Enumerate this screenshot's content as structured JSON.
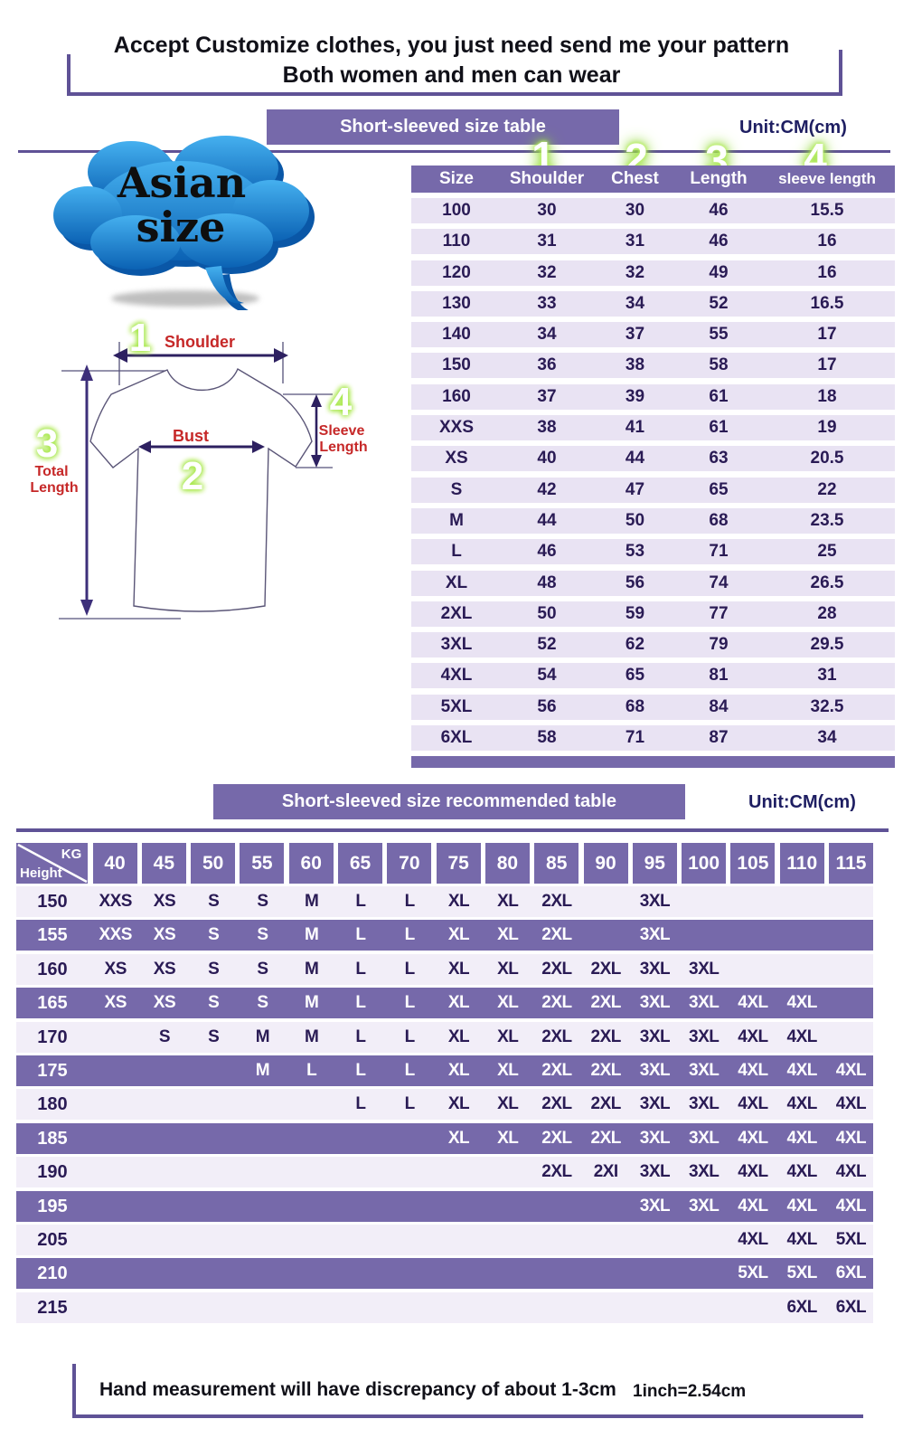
{
  "header": {
    "line1": "Accept Customize clothes, you just need send me your pattern",
    "line2": "Both women and men can wear"
  },
  "section1": {
    "title": "Short-sleeved size  table",
    "unit": "Unit:CM(cm)",
    "badge": {
      "line1": "Asian",
      "line2": "size"
    },
    "diagram": {
      "num1": "1",
      "num2": "2",
      "num3": "3",
      "num4": "4",
      "shoulder": "Shoulder",
      "bust": "Bust",
      "total_line1": "Total",
      "total_line2": "Length",
      "sleeve_line1": "Sleeve",
      "sleeve_line2": "Length"
    }
  },
  "size_table": {
    "columns": [
      "Size",
      "Shoulder",
      "Chest",
      "Length",
      "sleeve length"
    ],
    "col_numbers": [
      "1",
      "2",
      "3",
      "4"
    ],
    "rows": [
      [
        "100",
        "30",
        "30",
        "46",
        "15.5"
      ],
      [
        "110",
        "31",
        "31",
        "46",
        "16"
      ],
      [
        "120",
        "32",
        "32",
        "49",
        "16"
      ],
      [
        "130",
        "33",
        "34",
        "52",
        "16.5"
      ],
      [
        "140",
        "34",
        "37",
        "55",
        "17"
      ],
      [
        "150",
        "36",
        "38",
        "58",
        "17"
      ],
      [
        "160",
        "37",
        "39",
        "61",
        "18"
      ],
      [
        "XXS",
        "38",
        "41",
        "61",
        "19"
      ],
      [
        "XS",
        "40",
        "44",
        "63",
        "20.5"
      ],
      [
        "S",
        "42",
        "47",
        "65",
        "22"
      ],
      [
        "M",
        "44",
        "50",
        "68",
        "23.5"
      ],
      [
        "L",
        "46",
        "53",
        "71",
        "25"
      ],
      [
        "XL",
        "48",
        "56",
        "74",
        "26.5"
      ],
      [
        "2XL",
        "50",
        "59",
        "77",
        "28"
      ],
      [
        "3XL",
        "52",
        "62",
        "79",
        "29.5"
      ],
      [
        "4XL",
        "54",
        "65",
        "81",
        "31"
      ],
      [
        "5XL",
        "56",
        "68",
        "84",
        "32.5"
      ],
      [
        "6XL",
        "58",
        "71",
        "87",
        "34"
      ]
    ]
  },
  "section2": {
    "title": "Short-sleeved size recommended table",
    "unit": "Unit:CM(cm)"
  },
  "reco_table": {
    "corner": {
      "top": "KG",
      "bottom": "Height"
    },
    "weights": [
      "40",
      "45",
      "50",
      "55",
      "60",
      "65",
      "70",
      "75",
      "80",
      "85",
      "90",
      "95",
      "100",
      "105",
      "110",
      "115"
    ],
    "rows": [
      {
        "height": "150",
        "cells": [
          "XXS",
          "XS",
          "S",
          "S",
          "M",
          "L",
          "L",
          "XL",
          "XL",
          "2XL",
          "",
          "3XL",
          "",
          "",
          "",
          ""
        ]
      },
      {
        "height": "155",
        "cells": [
          "XXS",
          "XS",
          "S",
          "S",
          "M",
          "L",
          "L",
          "XL",
          "XL",
          "2XL",
          "",
          "3XL",
          "",
          "",
          "",
          ""
        ]
      },
      {
        "height": "160",
        "cells": [
          "XS",
          "XS",
          "S",
          "S",
          "M",
          "L",
          "L",
          "XL",
          "XL",
          "2XL",
          "2XL",
          "3XL",
          "3XL",
          "",
          "",
          ""
        ]
      },
      {
        "height": "165",
        "cells": [
          "XS",
          "XS",
          "S",
          "S",
          "M",
          "L",
          "L",
          "XL",
          "XL",
          "2XL",
          "2XL",
          "3XL",
          "3XL",
          "4XL",
          "4XL",
          ""
        ]
      },
      {
        "height": "170",
        "cells": [
          "",
          "S",
          "S",
          "M",
          "M",
          "L",
          "L",
          "XL",
          "XL",
          "2XL",
          "2XL",
          "3XL",
          "3XL",
          "4XL",
          "4XL",
          ""
        ]
      },
      {
        "height": "175",
        "cells": [
          "",
          "",
          "",
          "M",
          "L",
          "L",
          "L",
          "XL",
          "XL",
          "2XL",
          "2XL",
          "3XL",
          "3XL",
          "4XL",
          "4XL",
          "4XL"
        ]
      },
      {
        "height": "180",
        "cells": [
          "",
          "",
          "",
          "",
          "",
          "L",
          "L",
          "XL",
          "XL",
          "2XL",
          "2XL",
          "3XL",
          "3XL",
          "4XL",
          "4XL",
          "4XL"
        ]
      },
      {
        "height": "185",
        "cells": [
          "",
          "",
          "",
          "",
          "",
          "",
          "",
          "XL",
          "XL",
          "2XL",
          "2XL",
          "3XL",
          "3XL",
          "4XL",
          "4XL",
          "4XL"
        ]
      },
      {
        "height": "190",
        "cells": [
          "",
          "",
          "",
          "",
          "",
          "",
          "",
          "",
          "",
          "2XL",
          "2XI",
          "3XL",
          "3XL",
          "4XL",
          "4XL",
          "4XL"
        ]
      },
      {
        "height": "195",
        "cells": [
          "",
          "",
          "",
          "",
          "",
          "",
          "",
          "",
          "",
          "",
          "",
          "3XL",
          "3XL",
          "4XL",
          "4XL",
          "4XL"
        ]
      },
      {
        "height": "205",
        "cells": [
          "",
          "",
          "",
          "",
          "",
          "",
          "",
          "",
          "",
          "",
          "",
          "",
          "",
          "4XL",
          "4XL",
          "5XL"
        ]
      },
      {
        "height": "210",
        "cells": [
          "",
          "",
          "",
          "",
          "",
          "",
          "",
          "",
          "",
          "",
          "",
          "",
          "",
          "5XL",
          "5XL",
          "6XL"
        ]
      },
      {
        "height": "215",
        "cells": [
          "",
          "",
          "",
          "",
          "",
          "",
          "",
          "",
          "",
          "",
          "",
          "",
          "",
          "",
          "6XL",
          "6XL"
        ]
      }
    ]
  },
  "footer": {
    "note": "Hand measurement will have discrepancy of about  1-3cm",
    "conversion": "1inch=2.54cm"
  },
  "colors": {
    "accent_purple": "#7669aa",
    "divider_purple": "#5f5296",
    "row_lavender": "#e9e3f3",
    "text_navy": "#2a1b55",
    "label_red": "#c62828",
    "glow_green": "#a9e84d",
    "cloud_blue_top": "#45b0ef",
    "cloud_blue_bottom": "#0b62b4"
  }
}
